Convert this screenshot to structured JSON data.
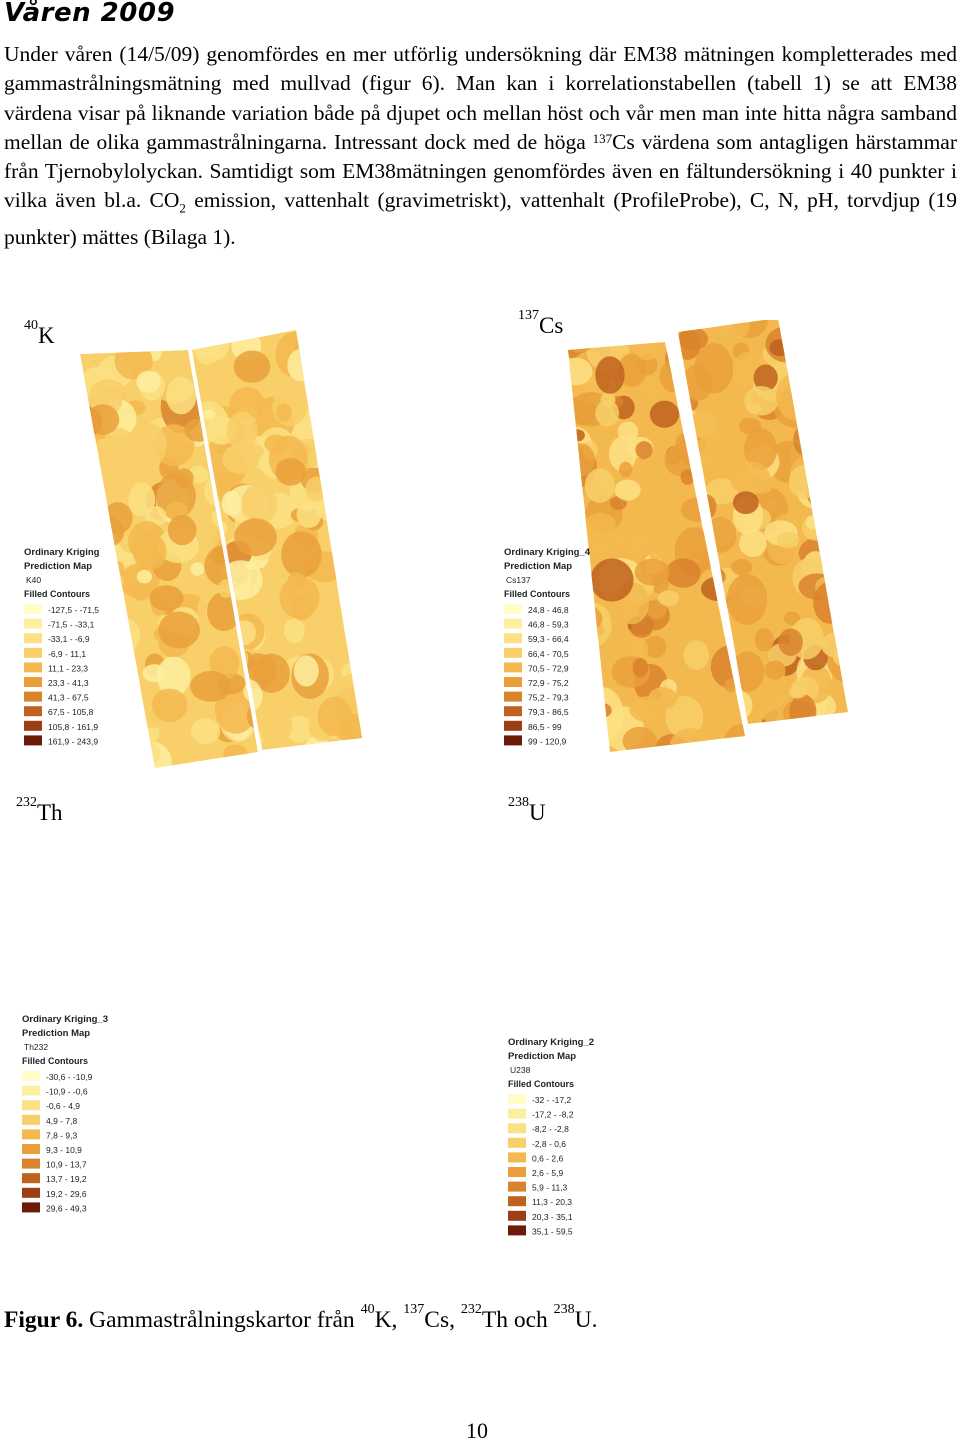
{
  "heading": "Våren 2009",
  "paragraph": {
    "part1": "Under våren (14/5/09) genomfördes en mer utförlig undersökning där EM38 mätningen kompletterades med gammastrålningsmätning med mullvad (figur 6). Man kan i korrelationstabellen (tabell 1) se att EM38 värdena visar på liknande variation både på djupet och mellan höst och vår men man inte hitta några samband mellan de olika gammastrålningarna. Intressant dock med de höga ",
    "cs_sup": "137",
    "part2": "Cs värdena som antagligen härstammar från Tjernobylolyckan. Samtidigt som EM38mätningen genomfördes även en fältundersökning i 40 punkter i vilka även bl.a. CO",
    "co2_sub": "2",
    "part3": " emission, vattenhalt (gravimetriskt), vattenhalt (ProfileProbe), C, N, pH, torvdjup (19 punkter) mättes (Bilaga 1)."
  },
  "maps": [
    {
      "iso_sup": "40",
      "iso_el": "K",
      "legend": {
        "title": "Ordinary Kriging",
        "subtitle": "Prediction Map",
        "variable": "K40",
        "contours_label": "Filled Contours",
        "classes": [
          "-127,5 - -71,5",
          "-71,5 - -33,1",
          "-33,1 - -6,9",
          "-6,9 - 11,1",
          "11,1 - 23,3",
          "23,3 - 41,3",
          "41,3 - 67,5",
          "67,5 - 105,8",
          "105,8 - 161,9",
          "161,9 - 243,9"
        ]
      }
    },
    {
      "iso_sup": "137",
      "iso_el": "Cs",
      "legend": {
        "title": "Ordinary Kriging_4",
        "subtitle": "Prediction Map",
        "variable": "Cs137",
        "contours_label": "Filled Contours",
        "classes": [
          "24,8 - 46,8",
          "46,8 - 59,3",
          "59,3 - 66,4",
          "66,4 - 70,5",
          "70,5 - 72,9",
          "72,9 - 75,2",
          "75,2 - 79,3",
          "79,3 - 86,5",
          "86,5 - 99",
          "99 - 120,9"
        ]
      }
    },
    {
      "iso_sup": "232",
      "iso_el": "Th",
      "legend": {
        "title": "Ordinary Kriging_3",
        "subtitle": "Prediction Map",
        "variable": "Th232",
        "contours_label": "Filled Contours",
        "classes": [
          "-30,6 - -10,9",
          "-10,9 - -0,6",
          "-0,6 - 4,9",
          "4,9 - 7,8",
          "7,8 - 9,3",
          "9,3 - 10,9",
          "10,9 - 13,7",
          "13,7 - 19,2",
          "19,2 - 29,6",
          "29,6 - 49,3"
        ]
      }
    },
    {
      "iso_sup": "238",
      "iso_el": "U",
      "legend": {
        "title": "Ordinary Kriging_2",
        "subtitle": "Prediction Map",
        "variable": "U238",
        "contours_label": "Filled Contours",
        "classes": [
          "-32 - -17,2",
          "-17,2 - -8,2",
          "-8,2 - -2,8",
          "-2,8 - 0,6",
          "0,6 - 2,6",
          "2,6 - 5,9",
          "5,9 - 11,3",
          "11,3 - 20,3",
          "20,3 - 35,1",
          "35,1 - 59,5"
        ]
      }
    }
  ],
  "legend_colors": [
    "#fffcc6",
    "#fdefa0",
    "#fbe183",
    "#f8cf68",
    "#f3b94f",
    "#e9a03b",
    "#d9832c",
    "#c0621f",
    "#9c3f14",
    "#6e1a08"
  ],
  "caption": {
    "label": "Figur 6.",
    "text": " Gammastrålningskartor från ",
    "k_sup": "40",
    "k": "K, ",
    "cs_sup": "137",
    "cs": "Cs, ",
    "th_sup": "232",
    "th": "Th och ",
    "u_sup": "238",
    "u": "U."
  },
  "page_number": "10"
}
